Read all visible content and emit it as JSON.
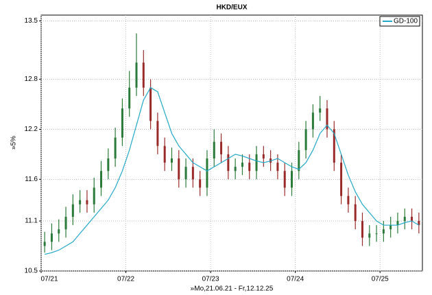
{
  "chart_data": {
    "type": "candlestick",
    "title": "HKD/EUX",
    "xlabel": "»Mo,21.06.21 - Fr,12.12.25",
    "ylabel": "»5%",
    "x": [
      "2021-07",
      "2021-08",
      "2021-09",
      "2021-10",
      "2021-11",
      "2021-12",
      "2022-01",
      "2022-02",
      "2022-03",
      "2022-04",
      "2022-05",
      "2022-06",
      "2022-07",
      "2022-08",
      "2022-09",
      "2022-10",
      "2022-11",
      "2022-12",
      "2023-01",
      "2023-02",
      "2023-03",
      "2023-04",
      "2023-05",
      "2023-06",
      "2023-07",
      "2023-08",
      "2023-09",
      "2023-10",
      "2023-11",
      "2023-12",
      "2024-01",
      "2024-02",
      "2024-03",
      "2024-04",
      "2024-05",
      "2024-06",
      "2024-07",
      "2024-08",
      "2024-09",
      "2024-10",
      "2024-11",
      "2024-12",
      "2025-01",
      "2025-02",
      "2025-03",
      "2025-04",
      "2025-05",
      "2025-06",
      "2025-07",
      "2025-08",
      "2025-09",
      "2025-10",
      "2025-11",
      "2025-12"
    ],
    "open": [
      10.8,
      10.85,
      10.95,
      11.0,
      11.15,
      11.3,
      11.35,
      11.3,
      11.5,
      11.7,
      11.85,
      12.1,
      12.45,
      12.7,
      13.0,
      12.7,
      12.3,
      12.0,
      11.8,
      11.85,
      11.6,
      11.75,
      11.6,
      11.5,
      11.85,
      12.05,
      11.9,
      11.7,
      11.75,
      11.8,
      11.7,
      11.9,
      11.85,
      11.8,
      11.7,
      11.5,
      11.7,
      11.95,
      12.2,
      12.4,
      12.45,
      12.2,
      11.8,
      11.4,
      11.3,
      11.1,
      10.9,
      10.95,
      10.95,
      11.0,
      11.05,
      11.1,
      11.15,
      11.1
    ],
    "high": [
      10.97,
      11.07,
      11.12,
      11.27,
      11.42,
      11.47,
      11.47,
      11.62,
      11.82,
      11.97,
      12.22,
      12.57,
      12.9,
      13.35,
      13.15,
      12.8,
      12.4,
      12.1,
      11.98,
      11.95,
      11.85,
      11.85,
      11.7,
      11.95,
      12.2,
      12.15,
      12.0,
      11.85,
      11.9,
      11.9,
      12.0,
      12.0,
      11.95,
      11.9,
      11.8,
      11.8,
      12.05,
      12.3,
      12.5,
      12.6,
      12.55,
      12.3,
      11.9,
      11.5,
      11.4,
      11.2,
      11.05,
      11.05,
      11.1,
      11.15,
      11.2,
      11.25,
      11.25,
      11.2
    ],
    "low": [
      10.72,
      10.75,
      10.85,
      10.9,
      11.05,
      11.2,
      11.2,
      11.2,
      11.4,
      11.6,
      11.75,
      12.0,
      12.35,
      12.6,
      12.6,
      12.2,
      11.9,
      11.7,
      11.7,
      11.5,
      11.5,
      11.5,
      11.4,
      11.4,
      11.75,
      11.8,
      11.6,
      11.6,
      11.65,
      11.6,
      11.6,
      11.75,
      11.7,
      11.6,
      11.4,
      11.4,
      11.6,
      11.85,
      12.1,
      12.3,
      12.1,
      11.7,
      11.3,
      11.2,
      11.0,
      10.8,
      10.8,
      10.85,
      10.85,
      10.9,
      10.95,
      11.0,
      11.0,
      10.95
    ],
    "close": [
      10.85,
      10.95,
      11.0,
      11.15,
      11.3,
      11.35,
      11.3,
      11.5,
      11.7,
      11.85,
      12.1,
      12.45,
      12.7,
      13.0,
      12.7,
      12.3,
      12.0,
      11.8,
      11.85,
      11.6,
      11.75,
      11.6,
      11.5,
      11.85,
      12.05,
      11.9,
      11.7,
      11.75,
      11.8,
      11.7,
      11.9,
      11.85,
      11.8,
      11.7,
      11.5,
      11.7,
      11.95,
      12.2,
      12.4,
      12.45,
      12.2,
      11.8,
      11.4,
      11.3,
      11.1,
      10.9,
      10.95,
      10.95,
      11.0,
      11.05,
      11.1,
      11.15,
      11.1,
      11.05
    ],
    "up_color": "#2a7a3a",
    "down_color": "#9a2a2a",
    "series": [
      {
        "name": "GD-100",
        "color": "#22a8c8",
        "values": [
          10.7,
          10.72,
          10.75,
          10.8,
          10.85,
          10.95,
          11.05,
          11.15,
          11.25,
          11.35,
          11.5,
          11.7,
          11.95,
          12.25,
          12.55,
          12.7,
          12.65,
          12.4,
          12.15,
          12.0,
          11.9,
          11.8,
          11.75,
          11.7,
          11.75,
          11.8,
          11.85,
          11.9,
          11.88,
          11.85,
          11.82,
          11.8,
          11.82,
          11.85,
          11.8,
          11.75,
          11.72,
          11.8,
          11.95,
          12.15,
          12.25,
          12.15,
          11.9,
          11.65,
          11.45,
          11.3,
          11.2,
          11.1,
          11.05,
          11.05,
          11.05,
          11.08,
          11.1,
          11.05
        ]
      }
    ],
    "xlim": [
      "2021-07",
      "2026-01"
    ],
    "xticks": [
      {
        "value": "2021-07",
        "label": "07/21"
      },
      {
        "value": "2022-07",
        "label": "07/22"
      },
      {
        "value": "2023-07",
        "label": "07/23"
      },
      {
        "value": "2024-07",
        "label": "07/24"
      },
      {
        "value": "2025-07",
        "label": "07/25"
      }
    ],
    "ylim": [
      10.5,
      13.57
    ],
    "yticks": [
      10.5,
      11.1,
      11.6,
      12.2,
      12.8,
      13.5
    ],
    "grid": true,
    "legend": "top-right"
  }
}
